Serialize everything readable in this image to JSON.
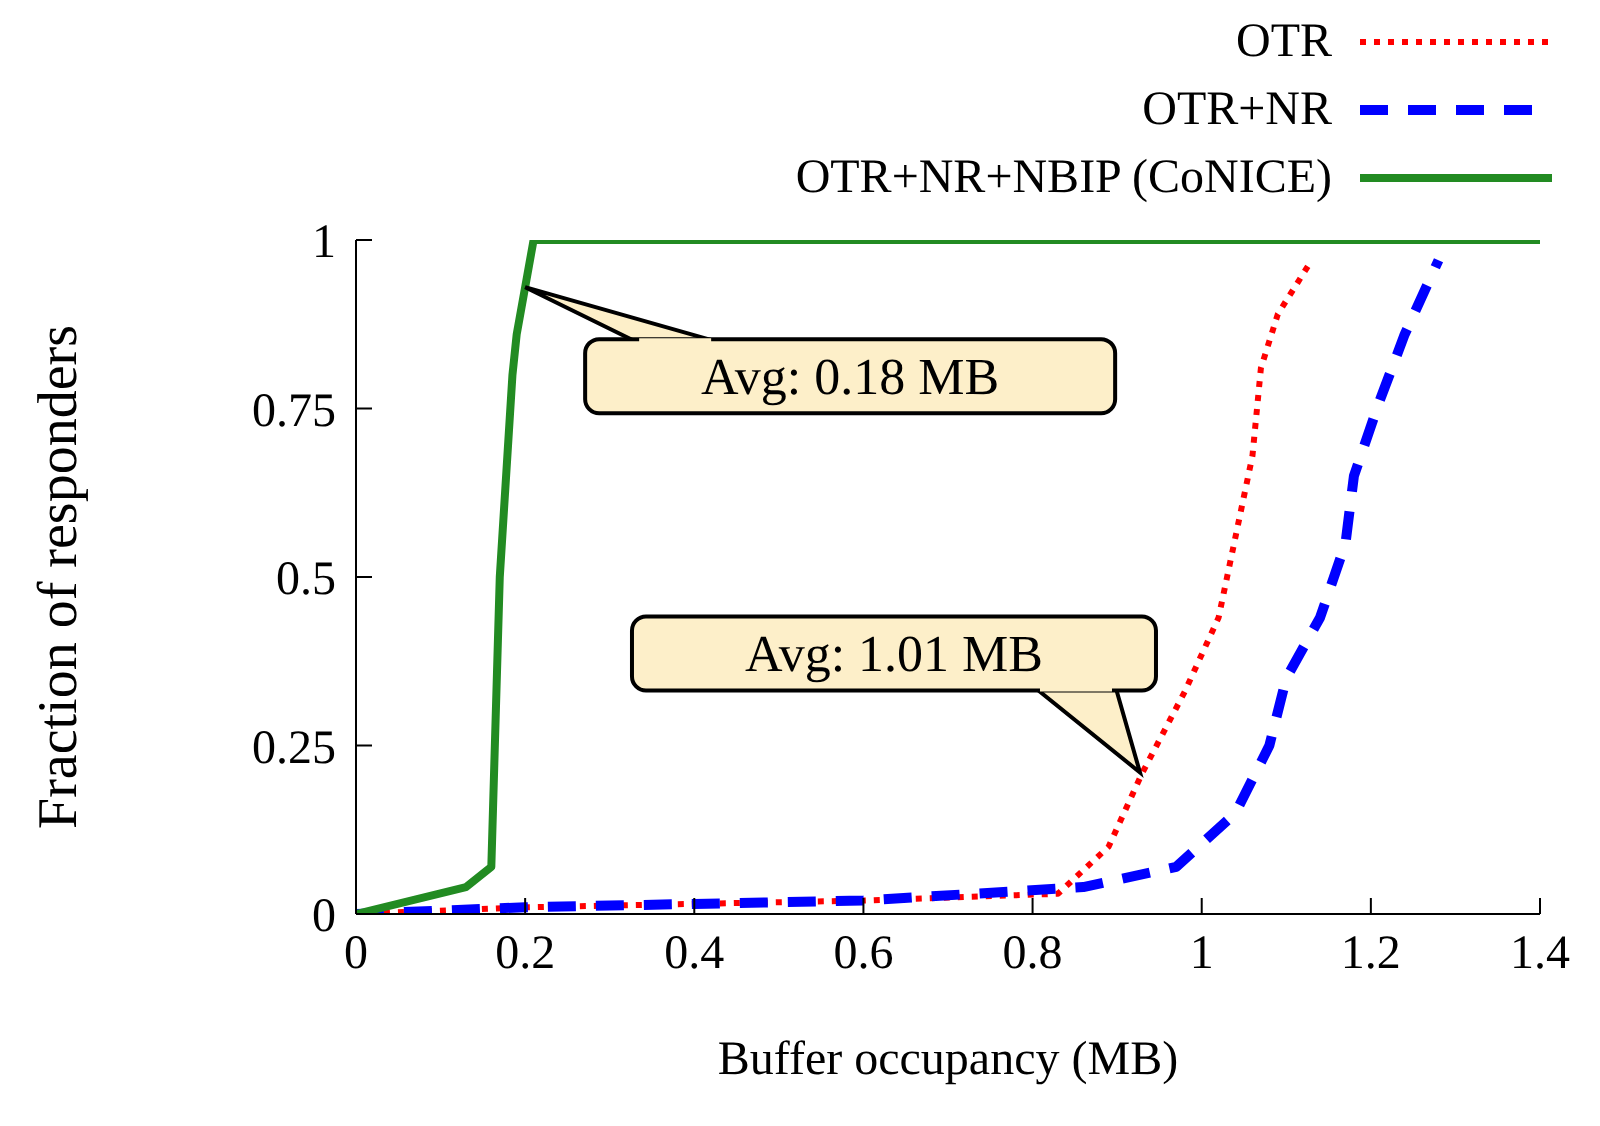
{
  "chart_data": {
    "type": "line",
    "xlabel": "Buffer occupancy (MB)",
    "ylabel": "Fraction of responders",
    "xlim": [
      0,
      1.4
    ],
    "xticks": [
      0,
      0.2,
      0.4,
      0.6,
      0.8,
      1,
      1.2,
      1.4
    ],
    "ylim": [
      0,
      1
    ],
    "yticks": [
      0,
      0.25,
      0.5,
      0.75,
      1
    ],
    "grid": false,
    "legend": "top right",
    "marker": "none",
    "series": [
      {
        "name": "OTR",
        "color": "#ff0000",
        "line_style": "dotted",
        "x": [
          0,
          0.2,
          0.4,
          0.6,
          0.83,
          0.89,
          0.93,
          0.98,
          1.02,
          1.04,
          1.06,
          1.07,
          1.09,
          1.13
        ],
        "values": [
          0,
          0.01,
          0.015,
          0.02,
          0.03,
          0.1,
          0.21,
          0.33,
          0.44,
          0.56,
          0.68,
          0.81,
          0.89,
          0.97
        ]
      },
      {
        "name": "OTR+NR",
        "color": "#0000ff",
        "line_style": "dashed",
        "x": [
          0,
          0.2,
          0.4,
          0.6,
          0.86,
          0.97,
          1.04,
          1.08,
          1.1,
          1.14,
          1.17,
          1.18,
          1.21,
          1.24,
          1.28
        ],
        "values": [
          0,
          0.01,
          0.015,
          0.02,
          0.04,
          0.07,
          0.15,
          0.25,
          0.35,
          0.44,
          0.55,
          0.65,
          0.76,
          0.86,
          0.97
        ]
      },
      {
        "name": "OTR+NR+NBIP (CoNICE)",
        "color": "#228b22",
        "line_style": "solid",
        "x": [
          0,
          0.13,
          0.16,
          0.17,
          0.185,
          0.19,
          0.21,
          1.4
        ],
        "values": [
          0,
          0.04,
          0.07,
          0.5,
          0.8,
          0.86,
          1,
          1
        ]
      }
    ],
    "annotations": [
      {
        "text": "Avg: 0.18 MB",
        "x": 0.2,
        "y": 0.93
      },
      {
        "text": "Avg: 1.01 MB",
        "x": 0.927,
        "y": 0.21
      }
    ]
  }
}
